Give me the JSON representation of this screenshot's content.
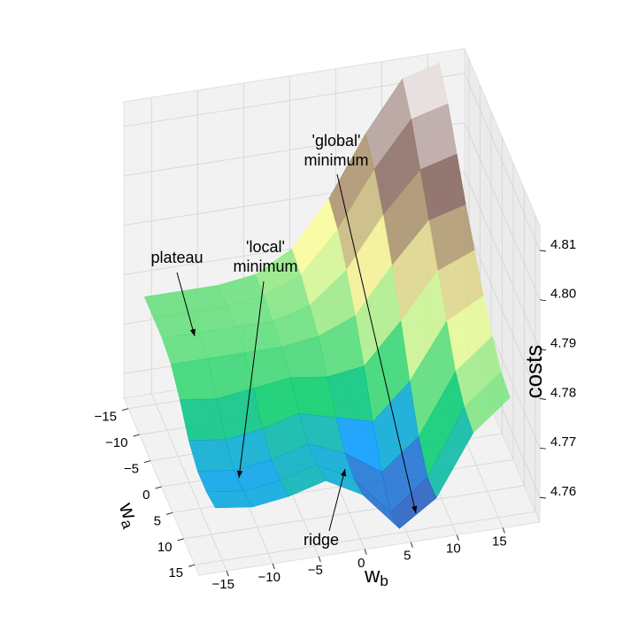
{
  "chart_data": {
    "type": "surface",
    "colormap": "terrain",
    "x": [
      -16,
      -12,
      -8,
      -4,
      0,
      4,
      8,
      12,
      16
    ],
    "y": [
      -16,
      -12,
      -8,
      -4,
      0,
      4,
      8,
      12,
      16
    ],
    "z": [
      [
        4.776,
        4.776,
        4.776,
        4.777,
        4.781,
        4.79,
        4.802,
        4.812,
        4.814
      ],
      [
        4.776,
        4.776,
        4.776,
        4.777,
        4.78,
        4.788,
        4.799,
        4.808,
        4.81
      ],
      [
        4.776,
        4.776,
        4.776,
        4.776,
        4.778,
        4.784,
        4.794,
        4.802,
        4.804
      ],
      [
        4.775,
        4.775,
        4.775,
        4.775,
        4.776,
        4.779,
        4.788,
        4.796,
        4.798
      ],
      [
        4.772,
        4.771,
        4.772,
        4.773,
        4.772,
        4.773,
        4.781,
        4.79,
        4.793
      ],
      [
        4.768,
        4.767,
        4.768,
        4.77,
        4.768,
        4.766,
        4.773,
        4.784,
        4.788
      ],
      [
        4.766,
        4.765,
        4.766,
        4.768,
        4.765,
        4.76,
        4.766,
        4.778,
        4.784
      ],
      [
        4.766,
        4.765,
        4.766,
        4.768,
        4.764,
        4.756,
        4.762,
        4.775,
        4.781
      ],
      [
        4.767,
        4.766,
        4.767,
        4.769,
        4.765,
        4.757,
        4.762,
        4.774,
        4.78
      ]
    ],
    "xlabel": {
      "text": "w",
      "subscript": "b"
    },
    "ylabel": {
      "text": "w",
      "subscript": "a"
    },
    "zlabel": "costs",
    "xlim": [
      -18,
      19
    ],
    "ylim": [
      -17,
      17
    ],
    "zlim": [
      4.755,
      4.815
    ],
    "xticks": [
      {
        "value": -15,
        "label": "−15"
      },
      {
        "value": -10,
        "label": "−10"
      },
      {
        "value": -5,
        "label": "−5"
      },
      0,
      5,
      10,
      15
    ],
    "yticks": [
      {
        "value": -15,
        "label": "−15"
      },
      {
        "value": -10,
        "label": "−10"
      },
      {
        "value": -5,
        "label": "−5"
      },
      0,
      5,
      10,
      15
    ],
    "zticks": [
      4.76,
      4.77,
      4.78,
      4.79,
      {
        "value": 4.8,
        "label": "4.80"
      },
      4.81
    ],
    "grid": true,
    "annotations": [
      {
        "lines": [
          "plateau"
        ]
      },
      {
        "lines": [
          "'local'",
          "minimum"
        ]
      },
      {
        "lines": [
          "'global'",
          "minimum"
        ]
      },
      {
        "lines": [
          "ridge"
        ]
      }
    ]
  }
}
